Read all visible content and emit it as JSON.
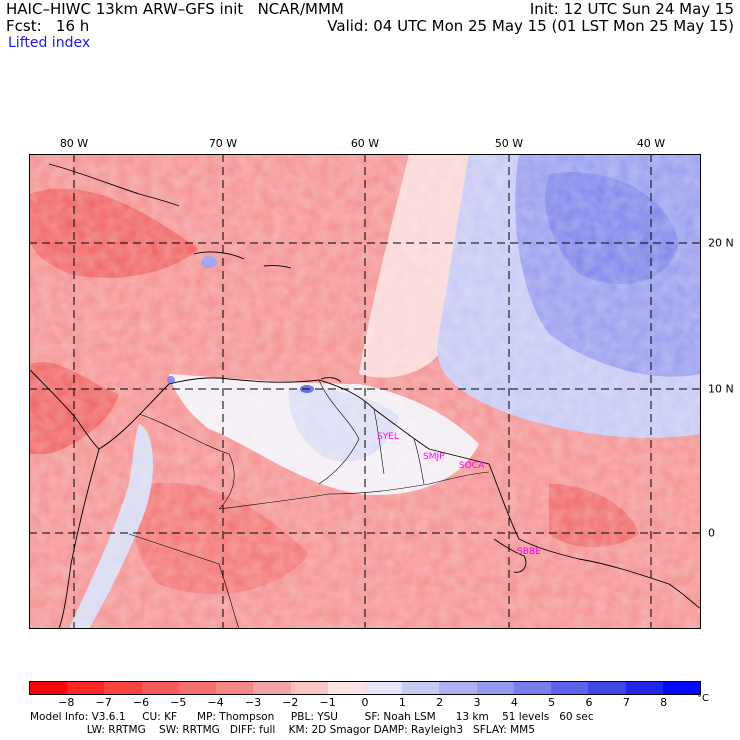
{
  "header": {
    "model_line": "HAIC–HIWC 13km ARW–GFS init   NCAR/MMM",
    "init_line": "Init: 12 UTC Sun 24 May 15",
    "fcst_line": "Fcst:   16 h",
    "valid_line": "Valid: 04 UTC Mon 25 May 15 (01 LST Mon 25 May 15)",
    "field_name": "Lifted index"
  },
  "map": {
    "lon_labels": [
      "80 W",
      "70 W",
      "60 W",
      "50 W",
      "40 W"
    ],
    "lat_labels": [
      "20 N",
      "10 N",
      "0"
    ],
    "stations": [
      "SYEL",
      "SMJP",
      "SOCA",
      "SBBE"
    ],
    "colors": {
      "strong_negative": "#f04848",
      "moderate_negative": "#f59090",
      "weak_negative": "#fbd0d0",
      "neutral": "#f4f0f6",
      "weak_positive": "#c6caf6",
      "moderate_positive": "#8f95ee",
      "strong_positive": "#5058e6"
    }
  },
  "colorbar": {
    "ticks": [
      "−8",
      "−7",
      "−6",
      "−5",
      "−4",
      "−3",
      "−2",
      "−1",
      "0",
      "1",
      "2",
      "3",
      "4",
      "5",
      "6",
      "7",
      "8"
    ],
    "unit": "°C",
    "colors": [
      "#ff0000",
      "#ff2626",
      "#fe4343",
      "#f85b5b",
      "#f67070",
      "#f68888",
      "#f6a3a3",
      "#f9c4c4",
      "#fce4e4",
      "#e6e6f8",
      "#c9cbf5",
      "#aeb1f3",
      "#9498ef",
      "#797eed",
      "#5c62ea",
      "#3f45e7",
      "#2127e4",
      "#0008ff"
    ]
  },
  "footer": {
    "line1": "Model Info: V3.6.1     CU: KF      MP: Thompson     PBL: YSU        SF: Noah LSM      13 km    51 levels   60 sec",
    "line2": "                 LW: RRTMG    SW: RRTMG   DIFF: full    KM: 2D Smagor DAMP: Rayleigh3   SFLAY: MM5"
  }
}
